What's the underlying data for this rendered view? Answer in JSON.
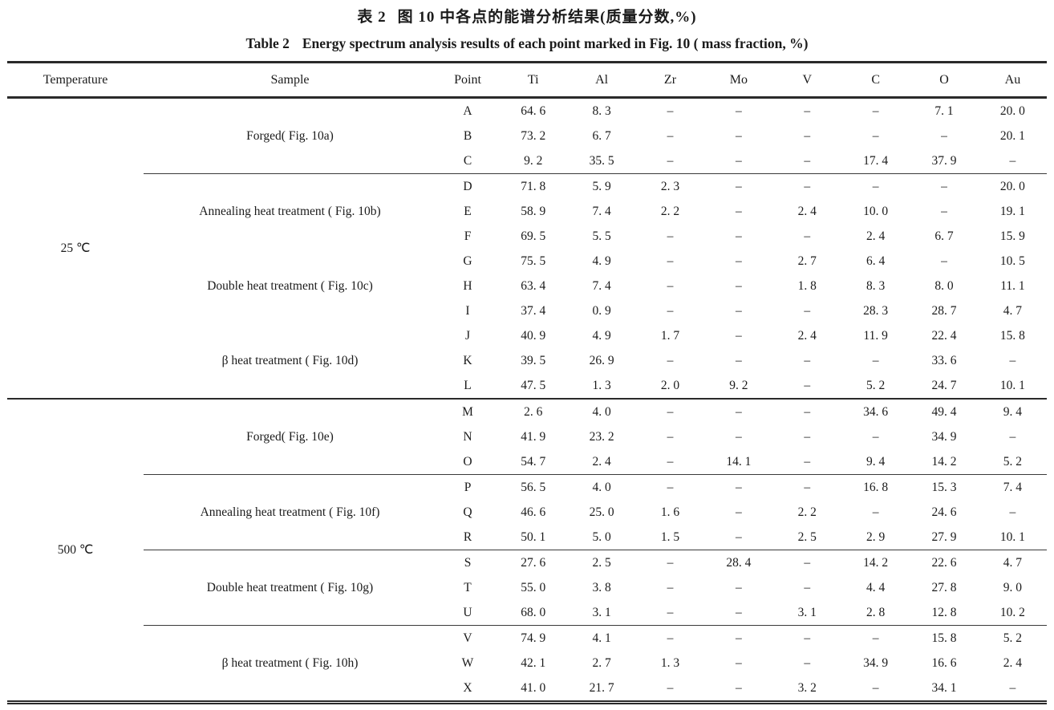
{
  "titles": {
    "chinese_label": "表 2",
    "chinese_text": "图 10 中各点的能谱分析结果(质量分数,%)",
    "english_label": "Table 2",
    "english_text": "Energy spectrum analysis results of each point marked in Fig. 10 ( mass fraction, %)"
  },
  "table": {
    "columns": [
      "Temperature",
      "Sample",
      "Point",
      "Ti",
      "Al",
      "Zr",
      "Mo",
      "V",
      "C",
      "O",
      "Au"
    ],
    "dash": "–",
    "groups": [
      {
        "temperature": "25 ℃",
        "samples": [
          {
            "label": "Forged( Fig. 10a)",
            "separator": false,
            "rows": [
              {
                "point": "A",
                "values": [
                  "64. 6",
                  "8. 3",
                  "–",
                  "–",
                  "–",
                  "–",
                  "7. 1",
                  "20. 0"
                ]
              },
              {
                "point": "B",
                "values": [
                  "73. 2",
                  "6. 7",
                  "–",
                  "–",
                  "–",
                  "–",
                  "–",
                  "20. 1"
                ]
              },
              {
                "point": "C",
                "values": [
                  "9. 2",
                  "35. 5",
                  "–",
                  "–",
                  "–",
                  "17. 4",
                  "37. 9",
                  "–"
                ]
              }
            ]
          },
          {
            "label": "Annealing heat treatment ( Fig. 10b)",
            "separator": true,
            "rows": [
              {
                "point": "D",
                "values": [
                  "71. 8",
                  "5. 9",
                  "2. 3",
                  "–",
                  "–",
                  "–",
                  "–",
                  "20. 0"
                ]
              },
              {
                "point": "E",
                "values": [
                  "58. 9",
                  "7. 4",
                  "2. 2",
                  "–",
                  "2. 4",
                  "10. 0",
                  "–",
                  "19. 1"
                ]
              },
              {
                "point": "F",
                "values": [
                  "69. 5",
                  "5. 5",
                  "–",
                  "–",
                  "–",
                  "2. 4",
                  "6. 7",
                  "15. 9"
                ]
              }
            ]
          },
          {
            "label": "Double heat treatment ( Fig. 10c)",
            "separator": false,
            "rows": [
              {
                "point": "G",
                "values": [
                  "75. 5",
                  "4. 9",
                  "–",
                  "–",
                  "2. 7",
                  "6. 4",
                  "–",
                  "10. 5"
                ]
              },
              {
                "point": "H",
                "values": [
                  "63. 4",
                  "7. 4",
                  "–",
                  "–",
                  "1. 8",
                  "8. 3",
                  "8. 0",
                  "11. 1"
                ]
              },
              {
                "point": "I",
                "values": [
                  "37. 4",
                  "0. 9",
                  "–",
                  "–",
                  "–",
                  "28. 3",
                  "28. 7",
                  "4. 7"
                ]
              }
            ]
          },
          {
            "label": "β heat treatment ( Fig. 10d)",
            "separator": false,
            "rows": [
              {
                "point": "J",
                "values": [
                  "40. 9",
                  "4. 9",
                  "1. 7",
                  "–",
                  "2. 4",
                  "11. 9",
                  "22. 4",
                  "15. 8"
                ]
              },
              {
                "point": "K",
                "values": [
                  "39. 5",
                  "26. 9",
                  "–",
                  "–",
                  "–",
                  "–",
                  "33. 6",
                  "–"
                ]
              },
              {
                "point": "L",
                "values": [
                  "47. 5",
                  "1. 3",
                  "2. 0",
                  "9. 2",
                  "–",
                  "5. 2",
                  "24. 7",
                  "10. 1"
                ]
              }
            ]
          }
        ]
      },
      {
        "temperature": "500 ℃",
        "samples": [
          {
            "label": "Forged( Fig. 10e)",
            "separator": false,
            "rows": [
              {
                "point": "M",
                "values": [
                  "2. 6",
                  "4. 0",
                  "–",
                  "–",
                  "–",
                  "34. 6",
                  "49. 4",
                  "9. 4"
                ]
              },
              {
                "point": "N",
                "values": [
                  "41. 9",
                  "23. 2",
                  "–",
                  "–",
                  "–",
                  "–",
                  "34. 9",
                  "–"
                ]
              },
              {
                "point": "O",
                "values": [
                  "54. 7",
                  "2. 4",
                  "–",
                  "14. 1",
                  "–",
                  "9. 4",
                  "14. 2",
                  "5. 2"
                ]
              }
            ]
          },
          {
            "label": "Annealing heat treatment ( Fig. 10f)",
            "separator": true,
            "rows": [
              {
                "point": "P",
                "values": [
                  "56. 5",
                  "4. 0",
                  "–",
                  "–",
                  "–",
                  "16. 8",
                  "15. 3",
                  "7. 4"
                ]
              },
              {
                "point": "Q",
                "values": [
                  "46. 6",
                  "25. 0",
                  "1. 6",
                  "–",
                  "2. 2",
                  "–",
                  "24. 6",
                  "–"
                ]
              },
              {
                "point": "R",
                "values": [
                  "50. 1",
                  "5. 0",
                  "1. 5",
                  "–",
                  "2. 5",
                  "2. 9",
                  "27. 9",
                  "10. 1"
                ]
              }
            ]
          },
          {
            "label": "Double heat treatment ( Fig. 10g)",
            "separator": true,
            "rows": [
              {
                "point": "S",
                "values": [
                  "27. 6",
                  "2. 5",
                  "–",
                  "28. 4",
                  "–",
                  "14. 2",
                  "22. 6",
                  "4. 7"
                ]
              },
              {
                "point": "T",
                "values": [
                  "55. 0",
                  "3. 8",
                  "–",
                  "–",
                  "–",
                  "4. 4",
                  "27. 8",
                  "9. 0"
                ]
              },
              {
                "point": "U",
                "values": [
                  "68. 0",
                  "3. 1",
                  "–",
                  "–",
                  "3. 1",
                  "2. 8",
                  "12. 8",
                  "10. 2"
                ]
              }
            ]
          },
          {
            "label": "β heat treatment ( Fig. 10h)",
            "separator": true,
            "rows": [
              {
                "point": "V",
                "values": [
                  "74. 9",
                  "4. 1",
                  "–",
                  "–",
                  "–",
                  "–",
                  "15. 8",
                  "5. 2"
                ]
              },
              {
                "point": "W",
                "values": [
                  "42. 1",
                  "2. 7",
                  "1. 3",
                  "–",
                  "–",
                  "34. 9",
                  "16. 6",
                  "2. 4"
                ]
              },
              {
                "point": "X",
                "values": [
                  "41. 0",
                  "21. 7",
                  "–",
                  "–",
                  "3. 2",
                  "–",
                  "34. 1",
                  "–"
                ]
              }
            ]
          }
        ]
      }
    ]
  }
}
